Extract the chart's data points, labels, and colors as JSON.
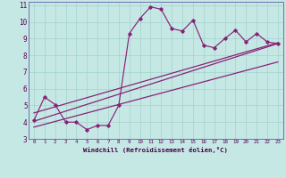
{
  "xlabel": "Windchill (Refroidissement éolien,°C)",
  "background_color": "#c5e8e5",
  "grid_color": "#a8d5d0",
  "line_color": "#882277",
  "xlim": [
    -0.5,
    23.5
  ],
  "ylim": [
    3,
    11.2
  ],
  "xticks": [
    0,
    1,
    2,
    3,
    4,
    5,
    6,
    7,
    8,
    9,
    10,
    11,
    12,
    13,
    14,
    15,
    16,
    17,
    18,
    19,
    20,
    21,
    22,
    23
  ],
  "yticks": [
    3,
    4,
    5,
    6,
    7,
    8,
    9,
    10,
    11
  ],
  "line1_x": [
    0,
    1,
    2,
    3,
    4,
    5,
    6,
    7,
    8,
    9,
    10,
    11,
    12,
    13,
    14,
    15,
    16,
    17,
    18,
    19,
    20,
    21,
    22,
    23
  ],
  "line1_y": [
    4.1,
    5.5,
    5.05,
    4.0,
    4.0,
    3.55,
    3.8,
    3.8,
    5.0,
    9.3,
    10.2,
    10.9,
    10.75,
    9.6,
    9.45,
    10.1,
    8.6,
    8.45,
    9.0,
    9.5,
    8.8,
    9.3,
    8.8,
    8.7
  ],
  "line2_x": [
    0,
    23
  ],
  "line2_y": [
    4.05,
    8.7
  ],
  "line3_x": [
    0,
    23
  ],
  "line3_y": [
    4.55,
    8.75
  ],
  "line4_x": [
    0,
    23
  ],
  "line4_y": [
    3.7,
    7.6
  ]
}
